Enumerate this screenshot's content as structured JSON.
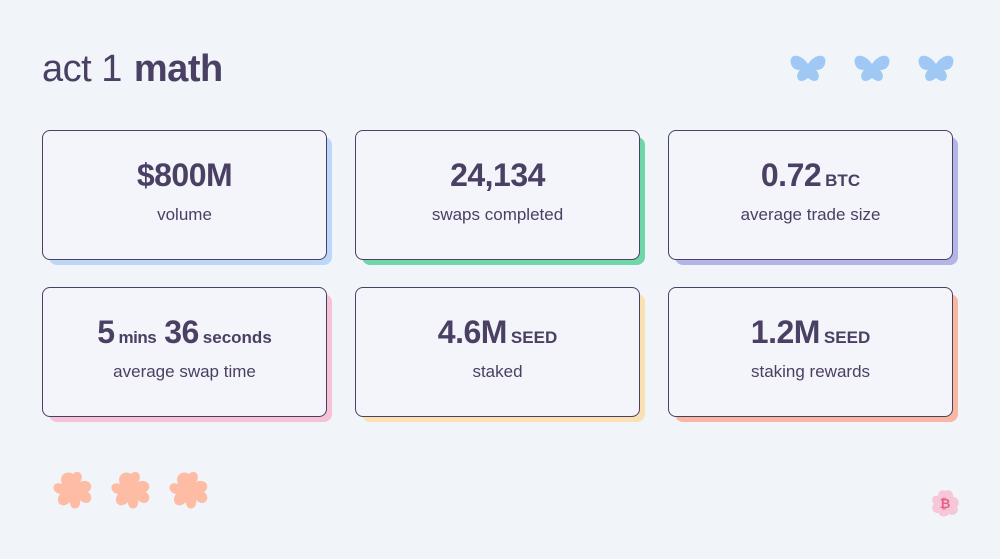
{
  "title": {
    "light": "act 1",
    "bold": "math"
  },
  "decor": {
    "top_blob_color": "#9fc8f5",
    "bottom_blob_color": "#fdbca3",
    "badge_icon": "bitcoin-icon",
    "badge_color": "#f5a3c0"
  },
  "stats": [
    {
      "value": "$800M",
      "unit": "",
      "label": "volume",
      "shadow": "#bcd7f7"
    },
    {
      "value": "24,134",
      "unit": "",
      "label": "swaps completed",
      "shadow": "#6fd6a8"
    },
    {
      "value": "0.72",
      "unit": "BTC",
      "label": "average trade size",
      "shadow": "#b3b5e7"
    },
    {
      "value": "5",
      "mid": "mins",
      "value2": "36",
      "unit": "seconds",
      "label": "average swap time",
      "shadow": "#f6c3d6"
    },
    {
      "value": "4.6M",
      "unit": "SEED",
      "label": "staked",
      "shadow": "#fbe0b2"
    },
    {
      "value": "1.2M",
      "unit": "SEED",
      "label": "staking rewards",
      "shadow": "#f9b6a0"
    }
  ]
}
